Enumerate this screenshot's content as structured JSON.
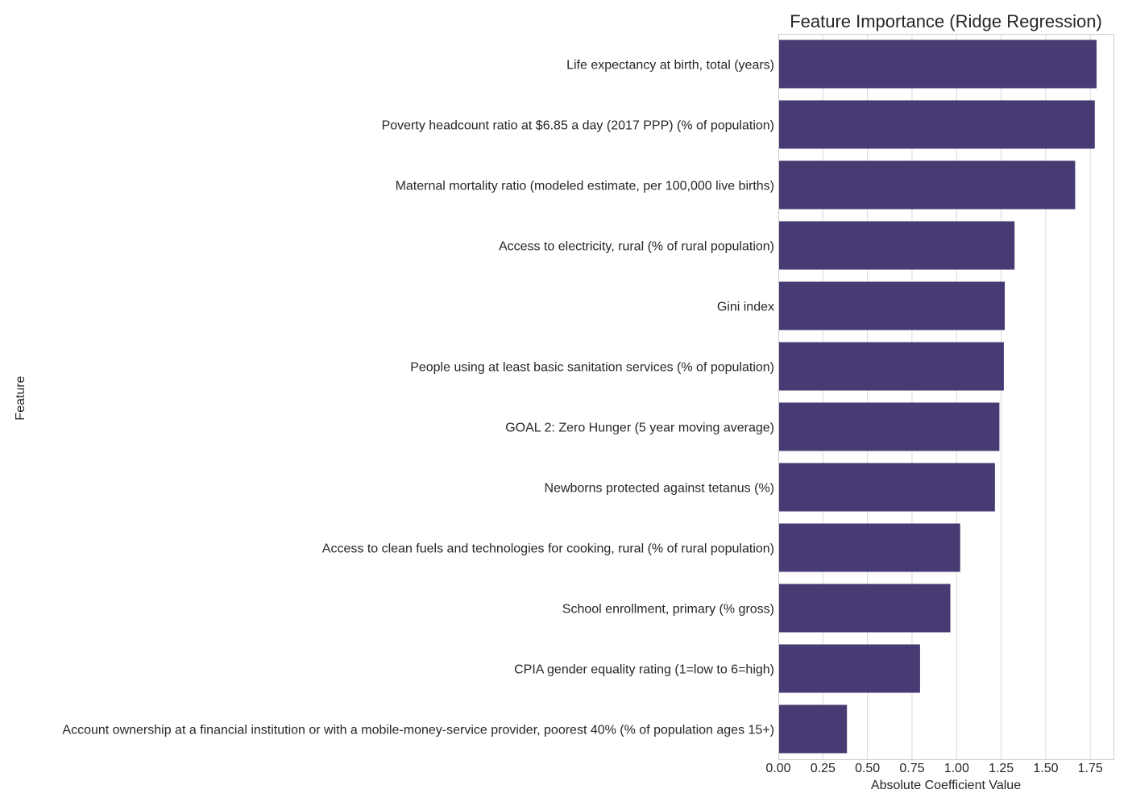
{
  "chart_data": {
    "type": "bar",
    "orientation": "horizontal",
    "title": "Feature Importance (Ridge Regression)",
    "xlabel": "Absolute Coefficient Value",
    "ylabel": "Feature",
    "xlim": [
      0,
      1.88
    ],
    "xticks": [
      "0.00",
      "0.25",
      "0.50",
      "0.75",
      "1.00",
      "1.25",
      "1.50",
      "1.75"
    ],
    "grid": "vertical",
    "bar_color": "#483a73",
    "categories": [
      "Life expectancy at birth, total (years)",
      "Poverty headcount ratio at $6.85 a day (2017 PPP) (% of population)",
      "Maternal mortality ratio (modeled estimate, per 100,000 live births)",
      "Access to electricity, rural (% of rural population)",
      "Gini index",
      "People using at least basic sanitation services (% of population)",
      "GOAL 2: Zero Hunger (5 year moving average)",
      "Newborns protected against tetanus (%)",
      "Access to clean fuels and technologies for cooking, rural (% of rural population)",
      "School enrollment, primary (% gross)",
      "CPIA gender equality rating (1=low to 6=high)",
      "Account ownership at a financial institution or with a mobile-money-service provider, poorest 40% (% of population ages 15+)"
    ],
    "values": [
      1.785,
      1.775,
      1.665,
      1.325,
      1.27,
      1.265,
      1.24,
      1.215,
      1.02,
      0.965,
      0.795,
      0.385
    ]
  }
}
